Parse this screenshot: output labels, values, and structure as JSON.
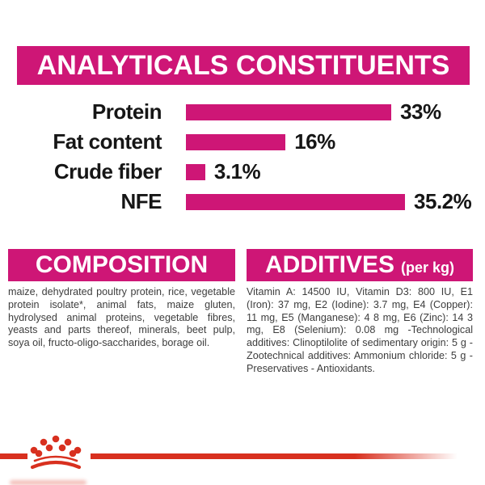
{
  "header": {
    "title": "ANALYTICALS CONSTITUENTS"
  },
  "chart_data": {
    "type": "bar",
    "orientation": "horizontal",
    "title": "ANALYTICALS CONSTITUENTS",
    "categories": [
      "Protein",
      "Fat content",
      "Crude fiber",
      "NFE"
    ],
    "values": [
      33,
      16,
      3.1,
      35.2
    ],
    "value_labels": [
      "33%",
      "16%",
      "3.1%",
      "35.2%"
    ],
    "xlabel": "",
    "ylabel": "",
    "xlim": [
      0,
      36.5
    ],
    "grid": false,
    "legend": false,
    "bar_color": "#CE1676"
  },
  "composition": {
    "title": "COMPOSITION",
    "text": "maize, dehydrated poultry protein, rice, vegetable protein isolate*, animal fats, maize gluten, hydrolysed animal proteins, vegetable fibres, yeasts and parts thereof, minerals, beet pulp, soya oil, fructo-oligo-saccharides, borage oil."
  },
  "additives": {
    "title": "ADDITIVES",
    "unit_label": "(per kg)",
    "text": "Vitamin A: 14500 IU, Vitamin D3: 800 IU, E1 (Iron): 37 mg, E2 (Iodine): 3.7 mg, E4 (Copper): 11 mg, E5 (Manganese): 4 8 mg, E6 (Zinc): 14 3 mg, E8 (Selenium): 0.08 mg -Technological additives: Clinoptilolite of sedimentary origin: 5 g - Zootechnical additives: Ammonium chloride: 5 g - Preservatives - Antioxidants."
  },
  "colors": {
    "magenta": "#CE1676",
    "red": "#D8301F",
    "label_text": "#161616",
    "body_text": "#3d3d3d"
  }
}
